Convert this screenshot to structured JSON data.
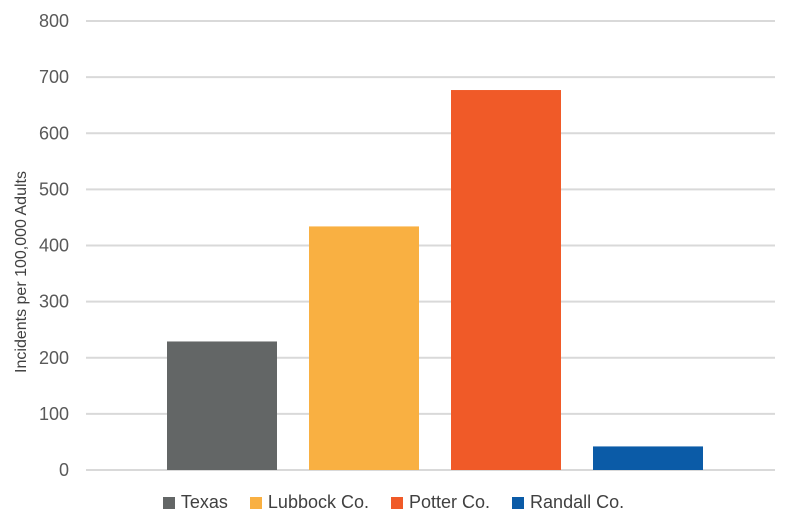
{
  "chart_data": {
    "type": "bar",
    "categories": [
      "Texas",
      "Lubbock Co.",
      "Potter Co.",
      "Randall Co."
    ],
    "values": [
      229,
      434,
      677,
      42
    ],
    "colors": [
      "#636666",
      "#F9B042",
      "#F05A28",
      "#0B5BA7"
    ],
    "title": "",
    "xlabel": "",
    "ylabel": "Incidents per 100,000 Adults",
    "ylim": [
      0,
      800
    ],
    "yticks": [
      "0",
      "100",
      "200",
      "300",
      "400",
      "500",
      "600",
      "700",
      "800"
    ],
    "grid": true,
    "legend_position": "bottom"
  }
}
